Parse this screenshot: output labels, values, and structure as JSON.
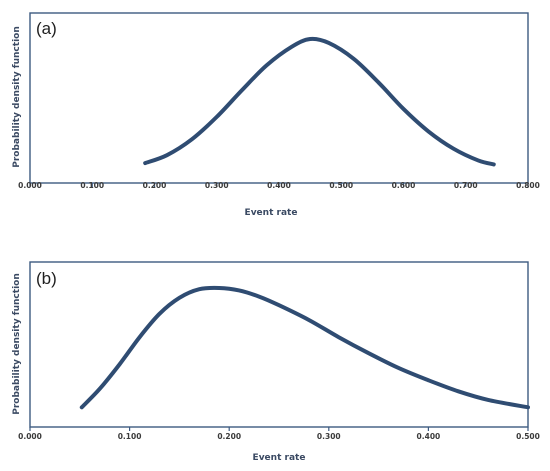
{
  "chart_data": [
    {
      "type": "line",
      "panel_label": "(a)",
      "xlabel": "Event rate",
      "ylabel": "Probability density function",
      "xlim": [
        0.0,
        0.8
      ],
      "x_tick_labels": [
        "0.000",
        "0.100",
        "0.200",
        "0.300",
        "0.400",
        "0.500",
        "0.600",
        "0.700",
        "0.800"
      ],
      "y_tick_labels": [],
      "y_axis": "unscaled relative density (no tick labels)",
      "grid": false,
      "legend": "none",
      "line_color": "#2f4c72",
      "series": [
        {
          "x": [
            0.185,
            0.22,
            0.26,
            0.3,
            0.34,
            0.38,
            0.42,
            0.45,
            0.48,
            0.52,
            0.56,
            0.6,
            0.64,
            0.68,
            0.72,
            0.745
          ],
          "y": [
            0.06,
            0.12,
            0.24,
            0.41,
            0.61,
            0.8,
            0.94,
            1.0,
            0.97,
            0.85,
            0.67,
            0.47,
            0.3,
            0.17,
            0.08,
            0.05
          ]
        }
      ]
    },
    {
      "type": "line",
      "panel_label": "(b)",
      "xlabel": "Event rate",
      "ylabel": "Probability density function",
      "xlim": [
        0.0,
        0.5
      ],
      "x_tick_labels": [
        "0.000",
        "0.100",
        "0.200",
        "0.300",
        "0.400",
        "0.500"
      ],
      "y_tick_labels": [],
      "y_axis": "unscaled relative density (no tick labels)",
      "grid": false,
      "legend": "none",
      "line_color": "#2f4c72",
      "series": [
        {
          "x": [
            0.052,
            0.07,
            0.09,
            0.11,
            0.13,
            0.15,
            0.17,
            0.19,
            0.21,
            0.23,
            0.25,
            0.28,
            0.31,
            0.34,
            0.37,
            0.4,
            0.43,
            0.46,
            0.5
          ],
          "y": [
            0.03,
            0.18,
            0.38,
            0.6,
            0.79,
            0.92,
            0.99,
            1.0,
            0.98,
            0.93,
            0.86,
            0.74,
            0.6,
            0.47,
            0.35,
            0.25,
            0.16,
            0.09,
            0.03
          ]
        }
      ]
    }
  ]
}
